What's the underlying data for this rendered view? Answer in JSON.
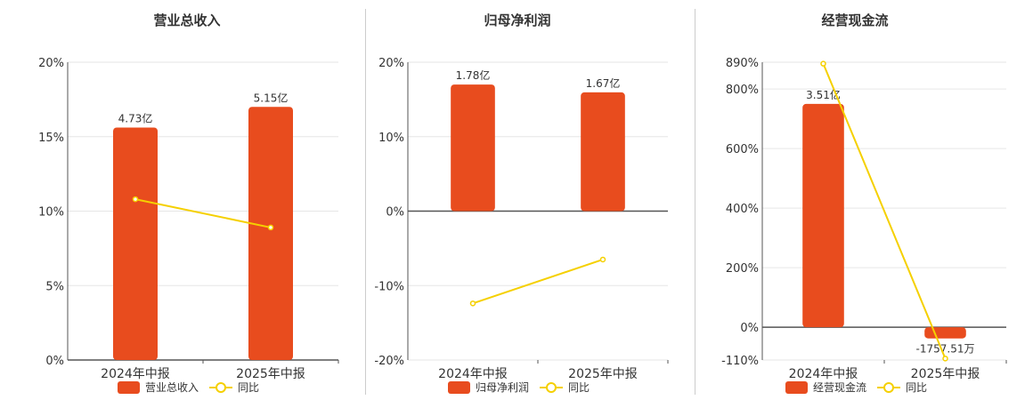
{
  "colors": {
    "bar": "#E84C1E",
    "line": "#F5D000",
    "grid": "#e6e6e6",
    "axis": "#555555",
    "text": "#333333"
  },
  "chart_data": [
    {
      "type": "bar",
      "title": "营业总收入",
      "categories": [
        "2024年中报",
        "2025年中报"
      ],
      "bar_values": [
        4.73,
        5.15
      ],
      "bar_labels": [
        "4.73亿",
        "5.15亿"
      ],
      "growth_pct": [
        10.8,
        8.9
      ],
      "ylim": [
        0,
        20
      ],
      "yticks": [
        0,
        5,
        10,
        15,
        20
      ],
      "ytick_labels": [
        "0%",
        "5%",
        "10%",
        "15%",
        "20%"
      ],
      "legend": [
        "营业总收入",
        "同比"
      ]
    },
    {
      "type": "bar",
      "title": "归母净利润",
      "categories": [
        "2024年中报",
        "2025年中报"
      ],
      "bar_values": [
        1.78,
        1.67
      ],
      "bar_labels": [
        "1.78亿",
        "1.67亿"
      ],
      "growth_pct": [
        -12.4,
        -6.5
      ],
      "ylim": [
        -20,
        20
      ],
      "yticks": [
        -20,
        -10,
        0,
        10,
        20
      ],
      "ytick_labels": [
        "-20%",
        "-10%",
        "0%",
        "10%",
        "20%"
      ],
      "legend": [
        "归母净利润",
        "同比"
      ]
    },
    {
      "type": "bar",
      "title": "经营现金流",
      "categories": [
        "2024年中报",
        "2025年中报"
      ],
      "bar_values": [
        3.51,
        -0.1757
      ],
      "bar_labels": [
        "3.51亿",
        "-1757.51万"
      ],
      "growth_pct": [
        885,
        -105
      ],
      "ylim": [
        -110,
        890
      ],
      "yticks": [
        -110,
        0,
        200,
        400,
        600,
        800,
        890
      ],
      "ytick_labels": [
        "-110%",
        "0%",
        "200%",
        "400%",
        "600%",
        "800%",
        "890%"
      ],
      "legend": [
        "经营现金流",
        "同比"
      ]
    }
  ]
}
